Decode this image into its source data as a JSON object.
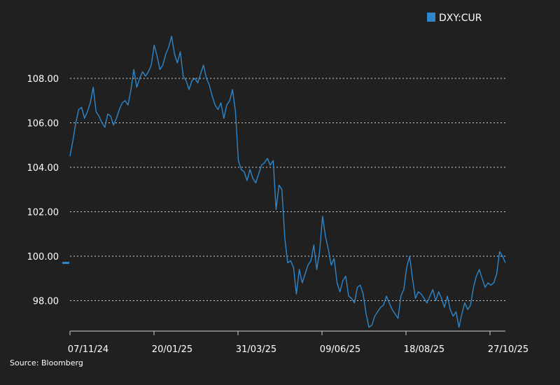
{
  "chart_data": {
    "type": "line",
    "title": "",
    "xlabel": "",
    "ylabel": "",
    "ylim": [
      96.6,
      110.2
    ],
    "yticks": [
      98,
      100,
      102,
      104,
      106,
      108
    ],
    "ytick_labels": [
      "98.00",
      "100.00",
      "102.00",
      "104.00",
      "106.00",
      "108.00"
    ],
    "xtick_labels": [
      "07/11/24",
      "20/01/25",
      "31/03/25",
      "09/06/25",
      "18/08/25",
      "27/10/25"
    ],
    "grid": true,
    "legend": "top-right",
    "series": [
      {
        "name": "DXY:CUR",
        "color": "#2f86c9",
        "values": [
          104.5,
          105.2,
          106.0,
          106.6,
          106.7,
          106.2,
          106.5,
          106.9,
          107.6,
          106.5,
          106.3,
          106.0,
          105.8,
          106.4,
          106.3,
          105.9,
          106.2,
          106.6,
          106.9,
          107.0,
          106.8,
          107.5,
          108.4,
          107.6,
          108.0,
          108.3,
          108.1,
          108.3,
          108.6,
          109.5,
          109.0,
          108.4,
          108.6,
          109.1,
          109.4,
          109.9,
          109.1,
          108.7,
          109.2,
          108.1,
          107.9,
          107.5,
          107.9,
          108.0,
          107.8,
          108.2,
          108.6,
          108.0,
          107.7,
          107.2,
          106.8,
          106.6,
          106.9,
          106.2,
          106.8,
          107.0,
          107.5,
          106.5,
          104.3,
          103.9,
          103.8,
          103.4,
          103.9,
          103.5,
          103.3,
          103.7,
          104.1,
          104.2,
          104.4,
          104.1,
          104.3,
          102.1,
          103.2,
          103.0,
          100.8,
          99.7,
          99.8,
          99.5,
          98.3,
          99.4,
          98.8,
          99.2,
          99.6,
          99.8,
          100.5,
          99.4,
          100.2,
          101.8,
          100.9,
          100.3,
          99.6,
          99.9,
          98.8,
          98.4,
          98.9,
          99.1,
          98.2,
          98.1,
          97.9,
          98.6,
          98.7,
          98.3,
          97.4,
          96.8,
          96.9,
          97.3,
          97.5,
          97.7,
          97.8,
          98.2,
          97.9,
          97.6,
          97.4,
          97.2,
          98.2,
          98.5,
          99.5,
          100.0,
          99.0,
          98.1,
          98.4,
          98.3,
          98.1,
          97.9,
          98.2,
          98.5,
          98.0,
          98.4,
          98.1,
          97.7,
          98.2,
          97.6,
          97.3,
          97.5,
          96.8,
          97.4,
          97.9,
          97.6,
          97.8,
          98.6,
          99.1,
          99.4,
          99.0,
          98.6,
          98.8,
          98.7,
          98.8,
          99.2,
          100.2,
          100.0,
          99.7
        ]
      }
    ]
  },
  "legend": {
    "label": "DXY:CUR"
  },
  "source": {
    "text": "Source: Bloomberg"
  }
}
